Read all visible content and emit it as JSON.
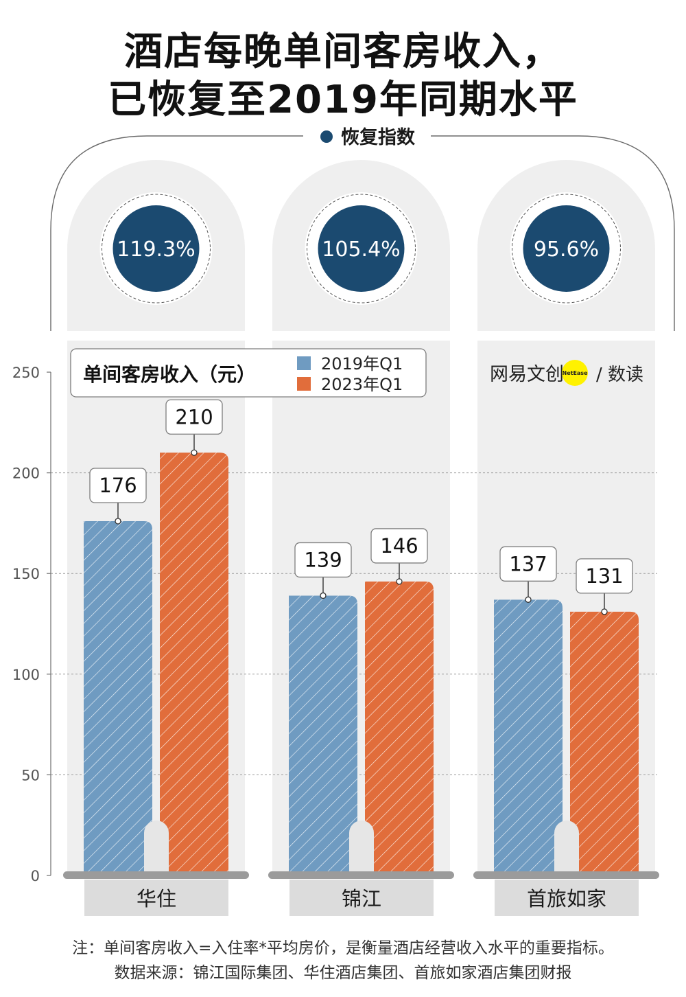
{
  "title": {
    "line1": "酒店每晚单间客房收入，",
    "line2": "已恢复至2019年同期水平"
  },
  "recovery": {
    "label": "恢复指数",
    "values": [
      "119.3%",
      "105.4%",
      "95.6%"
    ]
  },
  "brand": {
    "text": "网易文创",
    "badge": "NetEase",
    "suffix": "/ 数读"
  },
  "chart_data": {
    "type": "bar",
    "title": "单间客房收入（元）",
    "categories": [
      "华住",
      "锦江",
      "首旅如家"
    ],
    "series": [
      {
        "name": "2019年Q1",
        "values": [
          176,
          139,
          137
        ],
        "color": "#6f9bc1"
      },
      {
        "name": "2023年Q1",
        "values": [
          210,
          146,
          131
        ],
        "color": "#e16d3b"
      }
    ],
    "ylim": [
      0,
      250
    ],
    "yticks": [
      0,
      50,
      100,
      150,
      200,
      250
    ],
    "grid": true,
    "legend_position": "top"
  },
  "notes": {
    "line1": "注：单间客房收入=入住率*平均房价，是衡量酒店经营收入水平的重要指标。",
    "line2": "数据来源：锦江国际集团、华住酒店集团、首旅如家酒店集团财报"
  }
}
